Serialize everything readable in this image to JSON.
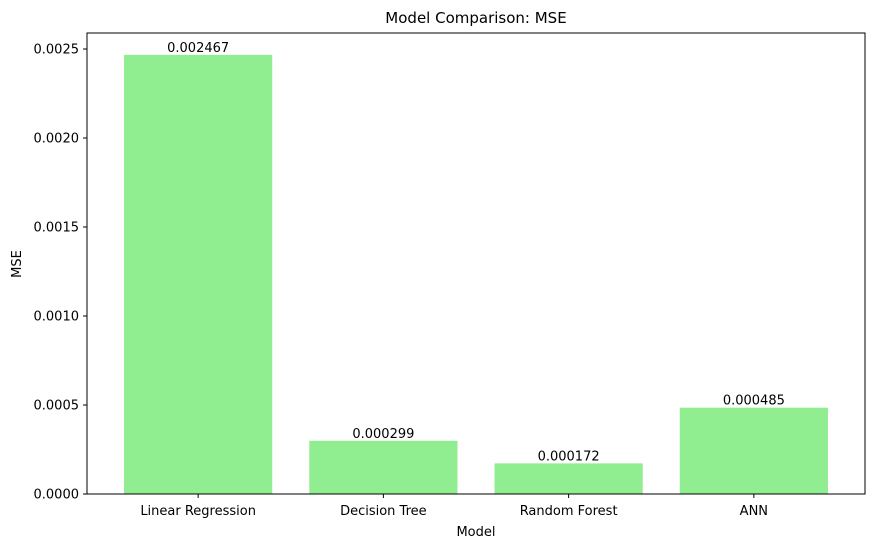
{
  "chart_data": {
    "type": "bar",
    "title": "Model Comparison: MSE",
    "xlabel": "Model",
    "ylabel": "MSE",
    "categories": [
      "Linear Regression",
      "Decision Tree",
      "Random Forest",
      "ANN"
    ],
    "values": [
      0.002467,
      0.000299,
      0.000172,
      0.000485
    ],
    "value_labels": [
      "0.002467",
      "0.000299",
      "0.000172",
      "0.000485"
    ],
    "ylim": [
      0,
      0.00259
    ],
    "yticks": [
      0,
      0.0005,
      0.001,
      0.0015,
      0.002,
      0.0025
    ],
    "ytick_labels": [
      "0.0000",
      "0.0005",
      "0.0010",
      "0.0015",
      "0.0020",
      "0.0025"
    ],
    "grid": false,
    "legend": "none",
    "bar_color": "#90ee90"
  }
}
